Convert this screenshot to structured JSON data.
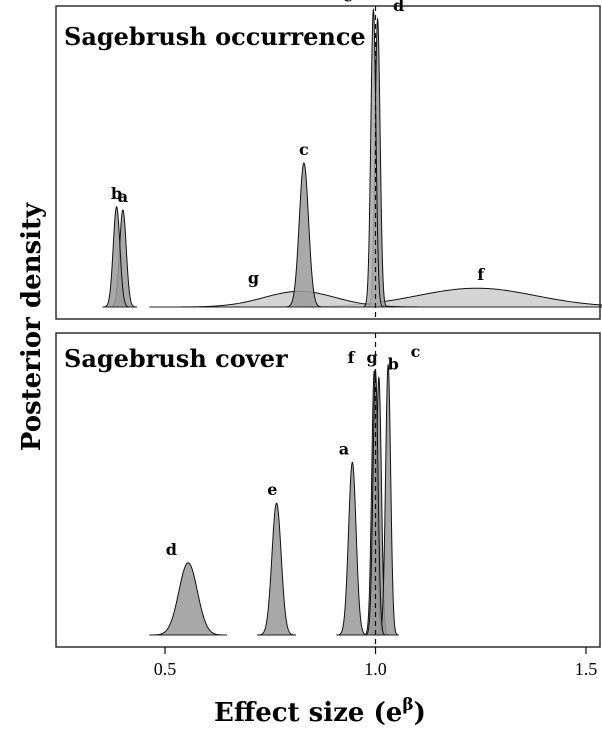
{
  "chart_data": [
    {
      "type": "density",
      "title": "Sagebrush occurrence",
      "x_range": [
        0.25,
        1.55
      ],
      "reference_line_x": 1.0,
      "series": [
        {
          "name": "a",
          "mode": 0.4,
          "sd": 0.008,
          "peak": 0.31,
          "fill": "#9a9a9a",
          "label_x": 0.4
        },
        {
          "name": "b",
          "mode": 0.385,
          "sd": 0.008,
          "peak": 0.32,
          "fill": "#9a9a9a",
          "label_x": 0.385
        },
        {
          "name": "c",
          "mode": 0.83,
          "sd": 0.011,
          "peak": 0.46,
          "fill": "#9a9a9a",
          "label_x": 0.83
        },
        {
          "name": "d",
          "mode": 1.005,
          "sd": 0.006,
          "peak": 0.92,
          "fill": "#999999",
          "label_x": 1.055
        },
        {
          "name": "e",
          "mode": 0.995,
          "sd": 0.006,
          "peak": 0.95,
          "fill": "#aaaaaa",
          "label_x": 0.935
        },
        {
          "name": "f",
          "mode": 1.24,
          "sd": 0.14,
          "peak": 0.06,
          "fill": "#cccccc",
          "label_x": 1.25
        },
        {
          "name": "g",
          "mode": 0.82,
          "sd": 0.085,
          "peak": 0.05,
          "fill": "#cccccc",
          "label_x": 0.71
        }
      ]
    },
    {
      "type": "density",
      "title": "Sagebrush cover",
      "x_range": [
        0.25,
        1.55
      ],
      "reference_line_x": 1.0,
      "series": [
        {
          "name": "a",
          "mode": 0.945,
          "sd": 0.009,
          "peak": 0.55,
          "fill": "#999999",
          "label_x": 0.925
        },
        {
          "name": "b",
          "mode": 1.008,
          "sd": 0.006,
          "peak": 0.82,
          "fill": "#999999",
          "label_x": 1.042
        },
        {
          "name": "c",
          "mode": 1.03,
          "sd": 0.006,
          "peak": 0.86,
          "fill": "#999999",
          "label_x": 1.095
        },
        {
          "name": "d",
          "mode": 0.555,
          "sd": 0.022,
          "peak": 0.23,
          "fill": "#999999",
          "label_x": 0.515
        },
        {
          "name": "e",
          "mode": 0.765,
          "sd": 0.011,
          "peak": 0.42,
          "fill": "#999999",
          "label_x": 0.755
        },
        {
          "name": "f",
          "mode": 0.997,
          "sd": 0.006,
          "peak": 0.84,
          "fill": "#999999",
          "label_x": 0.942
        },
        {
          "name": "g",
          "mode": 1.0,
          "sd": 0.006,
          "peak": 0.84,
          "fill": "#999999",
          "label_x": 0.992
        }
      ]
    }
  ],
  "axes": {
    "xlabel": "Effect size (e",
    "xlabel_superscript": "β",
    "xlabel_close": ")",
    "ylabel": "Posterior density",
    "xticks": [
      0.5,
      1.0,
      1.5
    ],
    "xtick_labels": [
      "0.5",
      "1.0",
      "1.5"
    ]
  }
}
